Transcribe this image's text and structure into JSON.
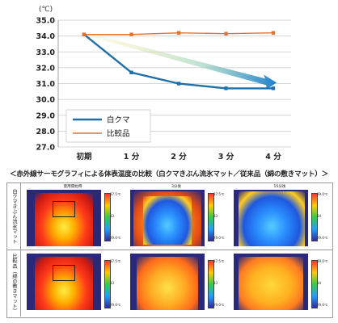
{
  "chart_data": {
    "type": "line",
    "ylabel": "(℃)",
    "categories": [
      "初期",
      "1 分",
      "2 分",
      "3 分",
      "4 分"
    ],
    "ylim": [
      27.0,
      35.0
    ],
    "yticks": [
      "35.0",
      "34.0",
      "33.0",
      "32.0",
      "31.0",
      "30.0",
      "29.0",
      "28.0",
      "27.0"
    ],
    "grid": true,
    "legend_position": "lower-left",
    "series": [
      {
        "name": "白クマ",
        "values": [
          34.1,
          31.7,
          31.0,
          30.7,
          30.7
        ],
        "color": "#1f6fa8"
      },
      {
        "name": "比較品",
        "values": [
          34.1,
          34.1,
          34.2,
          34.15,
          34.2
        ],
        "color": "#e6712b"
      }
    ]
  },
  "caption": "＜赤外線サーモグラフィによる体表温度の比較（白クマきぶん流氷マット／従来品（綿の敷きマット）＞",
  "thermography": {
    "rows": [
      {
        "label": "白クマきぶん流氷マット",
        "panels": [
          {
            "title": "使用開始時",
            "scale_max": "37.5℃",
            "scale_mid": "33",
            "scale_min": "29.0℃"
          },
          {
            "title": "3分後",
            "scale_max": "37.5℃",
            "scale_mid": "33",
            "scale_min": "29.0℃"
          },
          {
            "title": "15分後",
            "scale_max": "39.0℃",
            "scale_mid": "34",
            "scale_min": "29.0℃"
          }
        ]
      },
      {
        "label": "比較品（綿の敷きマット）",
        "panels": [
          {
            "title": "",
            "scale_max": "37.5℃",
            "scale_mid": "33",
            "scale_min": "29.0℃"
          },
          {
            "title": "",
            "scale_max": "37.5℃",
            "scale_mid": "33",
            "scale_min": "29.0℃"
          },
          {
            "title": "",
            "scale_max": "39.0℃",
            "scale_mid": "34",
            "scale_min": "29.0℃"
          }
        ]
      }
    ]
  }
}
